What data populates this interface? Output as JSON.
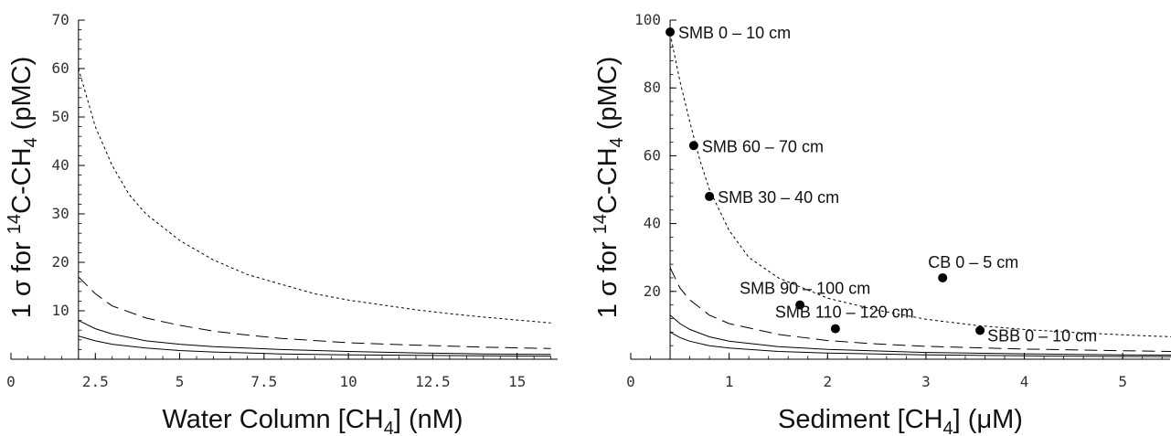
{
  "chart_data": [
    {
      "type": "line",
      "xlabel": {
        "pre": "Water Column [CH",
        "sub": "4",
        "post": "] (nM)"
      },
      "ylabel": {
        "pre": "1 σ for ",
        "sup": "14",
        "mid": "C-CH",
        "sub": "4",
        "post": " (pMC)"
      },
      "xlim": [
        0,
        16.2
      ],
      "ylim": [
        0,
        70
      ],
      "xticks": [
        {
          "v": 0,
          "label": "0"
        },
        {
          "v": 2.5,
          "label": "2.5"
        },
        {
          "v": 5,
          "label": "5"
        },
        {
          "v": 7.5,
          "label": "7.5"
        },
        {
          "v": 10,
          "label": "10"
        },
        {
          "v": 12.5,
          "label": "12.5"
        },
        {
          "v": 15,
          "label": "15"
        }
      ],
      "yticks": [
        {
          "v": 10,
          "label": "10"
        },
        {
          "v": 20,
          "label": "20"
        },
        {
          "v": 30,
          "label": "30"
        },
        {
          "v": 40,
          "label": "40"
        },
        {
          "v": 50,
          "label": "50"
        },
        {
          "v": 60,
          "label": "60"
        },
        {
          "v": 70,
          "label": "70"
        }
      ],
      "yaxis_at_x": 2,
      "grid": false,
      "series": [
        {
          "dash": "3,3",
          "x": [
            2,
            2.5,
            3,
            3.5,
            4,
            5,
            6,
            7,
            8,
            9,
            10,
            11,
            12,
            13,
            14,
            15,
            16
          ],
          "values": [
            60,
            48,
            40,
            34,
            30,
            24.5,
            20.5,
            17.5,
            15.5,
            13.5,
            12.2,
            11.2,
            10.2,
            9.4,
            8.7,
            8.1,
            7.5
          ]
        },
        {
          "dash": "14,7",
          "x": [
            2,
            2.5,
            3,
            4,
            5,
            6,
            7,
            8,
            10,
            12,
            14,
            16
          ],
          "values": [
            17,
            13.5,
            11,
            8.5,
            7,
            5.8,
            5,
            4.3,
            3.4,
            2.9,
            2.5,
            2.2
          ]
        },
        {
          "dash": "",
          "x": [
            2,
            2.5,
            3,
            4,
            5,
            6,
            8,
            10,
            12,
            14,
            16
          ],
          "values": [
            8,
            6.3,
            5.2,
            3.8,
            3.1,
            2.6,
            2,
            1.6,
            1.3,
            1.1,
            1
          ]
        },
        {
          "dash": "",
          "x": [
            2,
            2.5,
            3,
            4,
            5,
            6,
            8,
            10,
            12,
            14,
            16
          ],
          "values": [
            4.8,
            3.8,
            3.1,
            2.3,
            1.8,
            1.5,
            1.1,
            0.9,
            0.8,
            0.7,
            0.6
          ]
        }
      ]
    },
    {
      "type": "scatter",
      "xlabel": {
        "pre": "Sediment [CH",
        "sub": "4",
        "post": "] (μM)"
      },
      "ylabel": {
        "pre": "1 σ for ",
        "sup": "14",
        "mid": "C-CH",
        "sub": "4",
        "post": " (pMC)"
      },
      "xlim": [
        0,
        5.5
      ],
      "ylim": [
        0,
        100
      ],
      "xticks": [
        {
          "v": 0,
          "label": "0"
        },
        {
          "v": 1,
          "label": "1"
        },
        {
          "v": 2,
          "label": "2"
        },
        {
          "v": 3,
          "label": "3"
        },
        {
          "v": 4,
          "label": "4"
        },
        {
          "v": 5,
          "label": "5"
        }
      ],
      "yticks": [
        {
          "v": 20,
          "label": "20"
        },
        {
          "v": 40,
          "label": "40"
        },
        {
          "v": 60,
          "label": "60"
        },
        {
          "v": 80,
          "label": "80"
        },
        {
          "v": 100,
          "label": "100"
        }
      ],
      "yaxis_at_x": 0.4,
      "grid": false,
      "points": [
        {
          "x": 0.4,
          "y": 96.5,
          "label": "SMB 0 – 10 cm",
          "anchor": "right"
        },
        {
          "x": 0.64,
          "y": 63,
          "label": "SMB 60 – 70 cm",
          "anchor": "right"
        },
        {
          "x": 0.8,
          "y": 48,
          "label": "SMB 30 – 40 cm",
          "anchor": "right"
        },
        {
          "x": 1.72,
          "y": 16,
          "label": "SMB 90 – 100 cm",
          "anchor": "above-left"
        },
        {
          "x": 2.08,
          "y": 9,
          "label": "SMB 110 – 120 cm",
          "anchor": "above-left"
        },
        {
          "x": 3.17,
          "y": 24,
          "label": "CB 0 – 5 cm",
          "anchor": "above"
        },
        {
          "x": 3.55,
          "y": 8.5,
          "label": "SBB 0 – 10 cm",
          "anchor": "below-right"
        }
      ],
      "series": [
        {
          "dash": "3,3",
          "x": [
            0.4,
            0.5,
            0.6,
            0.7,
            0.8,
            1,
            1.2,
            1.5,
            2,
            2.5,
            3,
            3.5,
            4,
            4.5,
            5,
            5.5
          ],
          "values": [
            96,
            82,
            70,
            59,
            50,
            38,
            30,
            24,
            18,
            14.5,
            11.8,
            10,
            8.8,
            7.9,
            7.2,
            6.6
          ]
        },
        {
          "dash": "14,7",
          "x": [
            0.4,
            0.5,
            0.6,
            0.8,
            1,
            1.5,
            2,
            2.5,
            3,
            4,
            5,
            5.5
          ],
          "values": [
            27,
            21,
            17.5,
            13,
            10.5,
            7.3,
            5.5,
            4.5,
            3.8,
            3,
            2.5,
            2.3
          ]
        },
        {
          "dash": "",
          "x": [
            0.4,
            0.5,
            0.6,
            0.8,
            1,
            1.5,
            2,
            3,
            4,
            5,
            5.5
          ],
          "values": [
            13,
            10.5,
            8.8,
            6.6,
            5.3,
            3.7,
            2.9,
            2,
            1.6,
            1.3,
            1.2
          ]
        },
        {
          "dash": "",
          "x": [
            0.4,
            0.5,
            0.6,
            0.8,
            1,
            1.5,
            2,
            3,
            4,
            5,
            5.5
          ],
          "values": [
            8,
            6.4,
            5.3,
            4,
            3.3,
            2.3,
            1.8,
            1.3,
            1,
            0.8,
            0.75
          ]
        }
      ]
    }
  ]
}
